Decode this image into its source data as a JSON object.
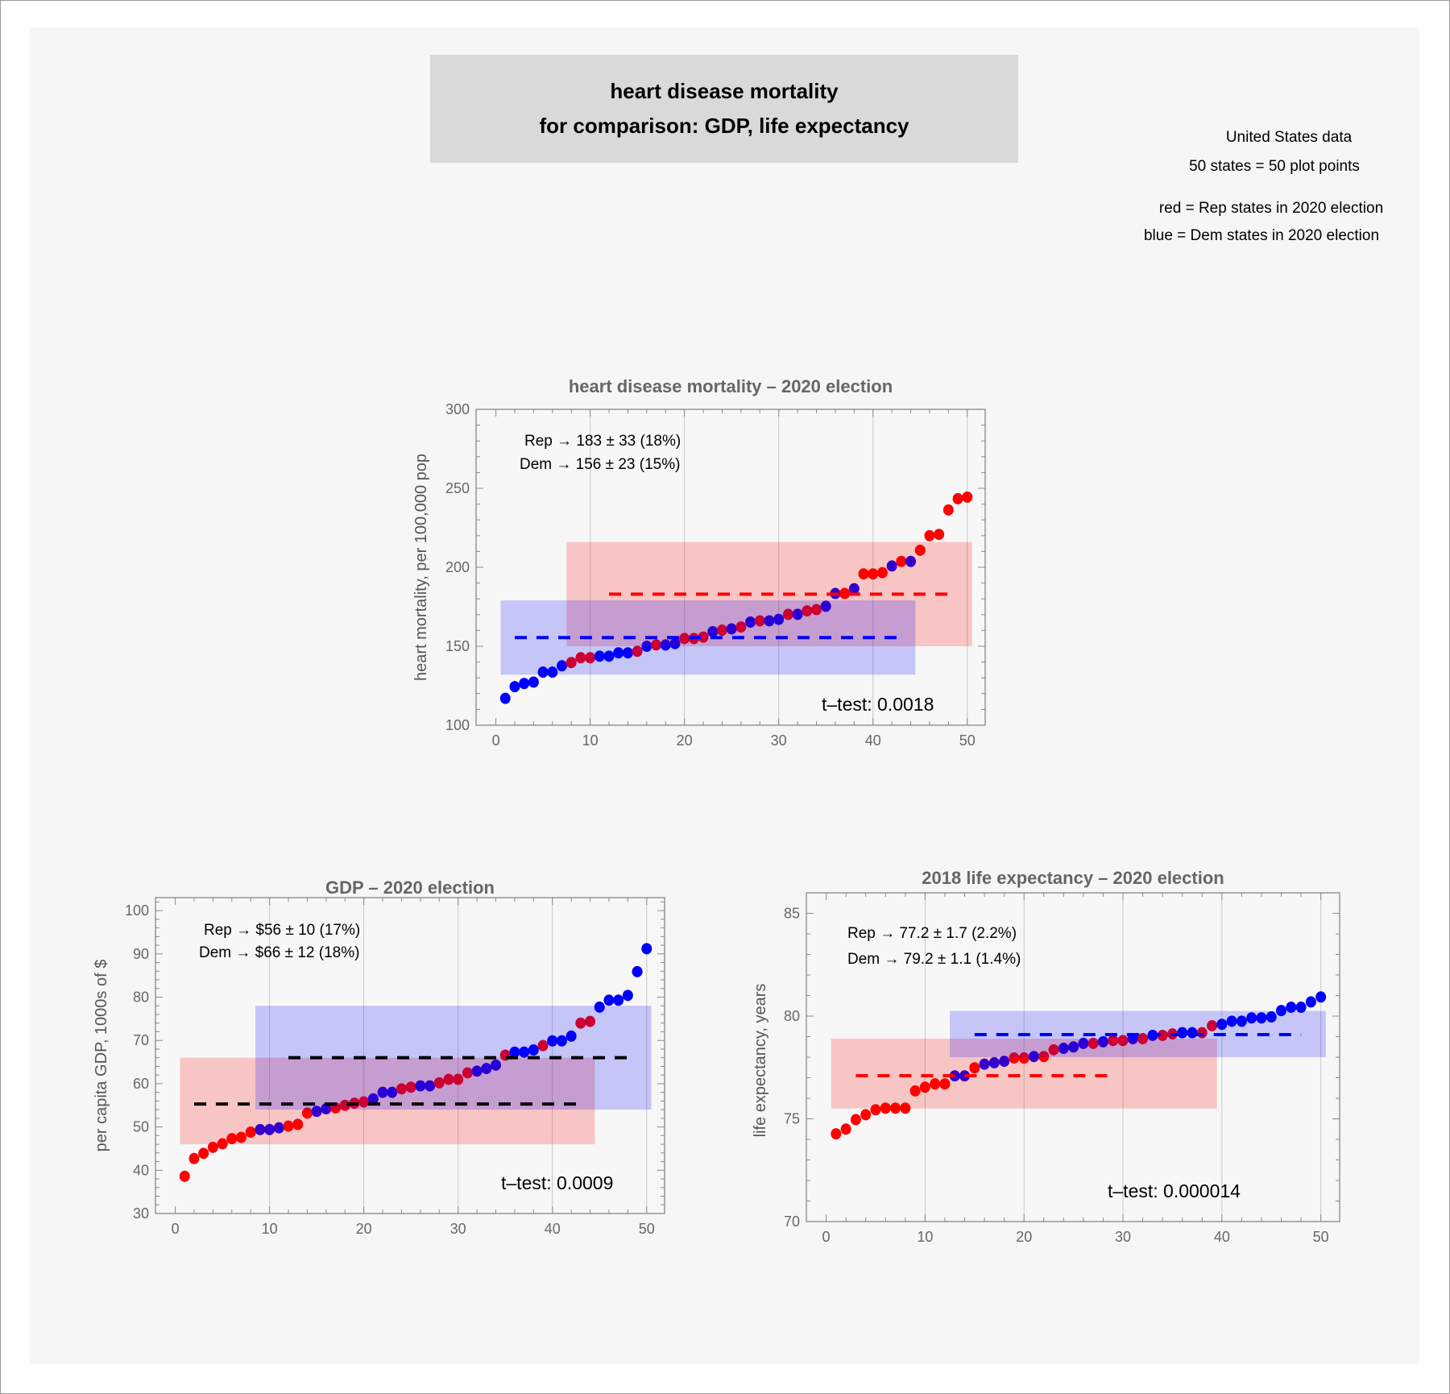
{
  "header": {
    "title_line1": "heart disease mortality",
    "title_line2": "for comparison:  GDP, life expectancy"
  },
  "info": {
    "line1": "United States data",
    "line2": "50 states = 50 plot points",
    "line3": "red = Rep states in 2020 election",
    "line4": "blue = Dem states in 2020 election"
  },
  "colors": {
    "rep": "#ff0000",
    "dem": "#0000ff",
    "mean_line_gdp": "#000000"
  },
  "chart_data": [
    {
      "type": "scatter",
      "title": "heart disease mortality –  2020 election",
      "xlabel": "",
      "ylabel": "heart mortality, per 100,000 pop",
      "xlim": [
        -2.1,
        51.9
      ],
      "ylim": [
        100,
        300
      ],
      "xticks": [
        0,
        10,
        20,
        30,
        40,
        50
      ],
      "yticks": [
        100,
        150,
        200,
        250,
        300
      ],
      "yminor": 10,
      "grid": "vertical",
      "annotations": {
        "rep": "Rep → 183 ± 33 (18%)",
        "dem": "Dem → 156 ± 23 (15%)",
        "ttest": "t–test:  0.0018"
      },
      "x": [
        1,
        2,
        3,
        4,
        5,
        6,
        7,
        8,
        9,
        10,
        11,
        12,
        13,
        14,
        15,
        16,
        17,
        18,
        19,
        20,
        21,
        22,
        23,
        24,
        25,
        26,
        27,
        28,
        29,
        30,
        31,
        32,
        33,
        34,
        35,
        36,
        37,
        38,
        39,
        40,
        41,
        42,
        43,
        44,
        45,
        46,
        47,
        48,
        49,
        50
      ],
      "y": [
        117,
        124.4,
        126.4,
        127.3,
        133.6,
        133.6,
        137.6,
        139.7,
        142.7,
        142.7,
        143.7,
        143.7,
        145.8,
        145.8,
        146.8,
        150,
        150.8,
        150.8,
        151.7,
        154.9,
        154.9,
        155.8,
        159.2,
        160.2,
        161,
        162.2,
        165.3,
        166.1,
        166.1,
        167,
        170.2,
        170.2,
        172.4,
        173.2,
        175.3,
        183.4,
        183.4,
        186.4,
        195.8,
        195.8,
        196.6,
        200.8,
        203.7,
        203.7,
        210.8,
        220,
        220.8,
        236.3,
        243.4,
        244.4
      ],
      "party": "DDDDDDDRRRDDDDRDRDDRRRDRDRDRDDRDRRDDRDRRRDRDRRRRRR",
      "bands": [
        {
          "party": "rep",
          "x": [
            7.5,
            50.5
          ],
          "y": [
            150,
            216
          ]
        },
        {
          "party": "dem",
          "x": [
            0.5,
            44.5
          ],
          "y": [
            132,
            179
          ]
        }
      ],
      "mean_lines": [
        {
          "party": "rep",
          "y": 183,
          "x": [
            12,
            48
          ],
          "color": "#ff0000"
        },
        {
          "party": "dem",
          "y": 155.5,
          "x": [
            2,
            43
          ],
          "color": "#0000ff"
        }
      ]
    },
    {
      "type": "scatter",
      "title": "GDP –  2020 election",
      "xlabel": "",
      "ylabel": "per capita GDP, 1000s of $",
      "xlim": [
        -2.1,
        51.9
      ],
      "ylim": [
        30,
        103
      ],
      "xticks": [
        0,
        10,
        20,
        30,
        40,
        50
      ],
      "yticks": [
        30,
        40,
        50,
        60,
        70,
        80,
        90,
        100
      ],
      "yminor": 2,
      "grid": "vertical",
      "annotations": {
        "rep": "Rep → $56 ± 10 (17%)",
        "dem": "Dem → $66 ± 12 (18%)",
        "ttest": "t–test:  0.0009"
      },
      "x": [
        1,
        2,
        3,
        4,
        5,
        6,
        7,
        8,
        9,
        10,
        11,
        12,
        13,
        14,
        15,
        16,
        17,
        18,
        19,
        20,
        21,
        22,
        23,
        24,
        25,
        26,
        27,
        28,
        29,
        30,
        31,
        32,
        33,
        34,
        35,
        36,
        37,
        38,
        39,
        40,
        41,
        42,
        43,
        44,
        45,
        46,
        47,
        48,
        49,
        50
      ],
      "y": [
        38.6,
        42.7,
        43.9,
        45.3,
        46.1,
        47.3,
        47.6,
        48.8,
        49.4,
        49.4,
        49.8,
        50.2,
        50.6,
        53.2,
        53.6,
        54.2,
        54.4,
        55,
        55.5,
        55.8,
        56.5,
        58,
        58,
        58.8,
        59.2,
        59.5,
        59.5,
        60.2,
        61,
        61,
        62.5,
        62.9,
        63.5,
        64.3,
        66.6,
        67.3,
        67.3,
        67.8,
        68.8,
        69.9,
        69.9,
        71,
        74,
        74.4,
        77.7,
        79.3,
        79.3,
        80.4,
        85.9,
        91.2
      ],
      "party": "RRRRRRRRDDDRRRDDRRRRDDDRRDDRRRRDDDRDDDRDDDRRDDDDDD",
      "bands": [
        {
          "party": "rep",
          "x": [
            0.5,
            44.5
          ],
          "y": [
            46,
            66
          ]
        },
        {
          "party": "dem",
          "x": [
            8.5,
            50.5
          ],
          "y": [
            54,
            78
          ]
        }
      ],
      "mean_lines": [
        {
          "party": "rep",
          "y": 55.3,
          "x": [
            2,
            43
          ],
          "color": "#000000"
        },
        {
          "party": "dem",
          "y": 66,
          "x": [
            12,
            48
          ],
          "color": "#000000"
        }
      ]
    },
    {
      "type": "scatter",
      "title": "2018 life expectancy  –  2020 election",
      "xlabel": "",
      "ylabel": "life expectancy, years",
      "xlim": [
        -2.0,
        51.9
      ],
      "ylim": [
        70,
        86
      ],
      "xticks": [
        0,
        10,
        20,
        30,
        40,
        50
      ],
      "yticks": [
        70,
        75,
        80,
        85
      ],
      "yminor": 1,
      "grid": "vertical",
      "annotations": {
        "rep": "Rep  →  77.2 ± 1.7 (2.2%)",
        "dem": "Dem →  79.2 ± 1.1 (1.4%)",
        "ttest": "t–test:  0.000014"
      },
      "x": [
        1,
        2,
        3,
        4,
        5,
        6,
        7,
        8,
        9,
        10,
        11,
        12,
        13,
        14,
        15,
        16,
        17,
        18,
        19,
        20,
        21,
        22,
        23,
        24,
        25,
        26,
        27,
        28,
        29,
        30,
        31,
        32,
        33,
        34,
        35,
        36,
        37,
        38,
        39,
        40,
        41,
        42,
        43,
        44,
        45,
        46,
        47,
        48,
        49,
        50
      ],
      "y": [
        74.27,
        74.5,
        74.96,
        75.2,
        75.44,
        75.52,
        75.52,
        75.52,
        76.36,
        76.54,
        76.7,
        76.7,
        77.09,
        77.09,
        77.48,
        77.66,
        77.73,
        77.8,
        77.96,
        77.96,
        78.03,
        78.03,
        78.36,
        78.43,
        78.5,
        78.67,
        78.67,
        78.75,
        78.81,
        78.81,
        78.9,
        78.9,
        79.06,
        79.06,
        79.13,
        79.19,
        79.19,
        79.19,
        79.53,
        79.6,
        79.75,
        79.75,
        79.91,
        79.91,
        79.96,
        80.27,
        80.43,
        80.43,
        80.69,
        80.93
      ],
      "party": "RRRRRRRRRRRRDDRDDDRRDRRDDDRDRRDRDRRDDRRDDDDDDDDDDD",
      "bands": [
        {
          "party": "rep",
          "x": [
            0.5,
            39.5
          ],
          "y": [
            75.5,
            78.9
          ]
        },
        {
          "party": "dem",
          "x": [
            12.5,
            50.5
          ],
          "y": [
            78.0,
            80.25
          ]
        }
      ],
      "mean_lines": [
        {
          "party": "rep",
          "y": 77.1,
          "x": [
            3,
            29
          ],
          "color": "#ff0000"
        },
        {
          "party": "dem",
          "y": 79.1,
          "x": [
            15,
            48
          ],
          "color": "#0000ff"
        }
      ]
    }
  ]
}
